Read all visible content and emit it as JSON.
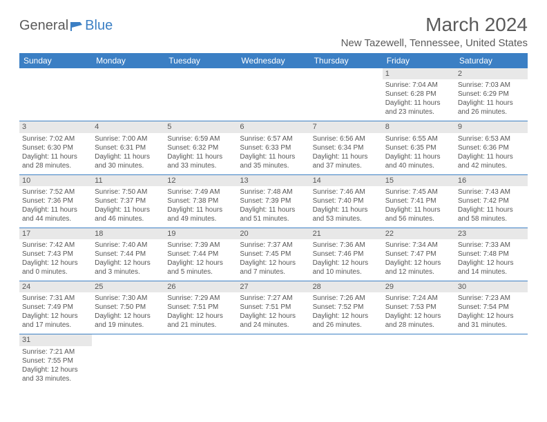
{
  "logo": {
    "text1": "General",
    "text2": "Blue"
  },
  "title": "March 2024",
  "location": "New Tazewell, Tennessee, United States",
  "colors": {
    "header_bg": "#3b7fc4",
    "text": "#5a5a5a",
    "daybar": "#e8e8e8"
  },
  "weekdays": [
    "Sunday",
    "Monday",
    "Tuesday",
    "Wednesday",
    "Thursday",
    "Friday",
    "Saturday"
  ],
  "weeks": [
    [
      null,
      null,
      null,
      null,
      null,
      {
        "n": "1",
        "sr": "Sunrise: 7:04 AM",
        "ss": "Sunset: 6:28 PM",
        "dl": "Daylight: 11 hours and 23 minutes."
      },
      {
        "n": "2",
        "sr": "Sunrise: 7:03 AM",
        "ss": "Sunset: 6:29 PM",
        "dl": "Daylight: 11 hours and 26 minutes."
      }
    ],
    [
      {
        "n": "3",
        "sr": "Sunrise: 7:02 AM",
        "ss": "Sunset: 6:30 PM",
        "dl": "Daylight: 11 hours and 28 minutes."
      },
      {
        "n": "4",
        "sr": "Sunrise: 7:00 AM",
        "ss": "Sunset: 6:31 PM",
        "dl": "Daylight: 11 hours and 30 minutes."
      },
      {
        "n": "5",
        "sr": "Sunrise: 6:59 AM",
        "ss": "Sunset: 6:32 PM",
        "dl": "Daylight: 11 hours and 33 minutes."
      },
      {
        "n": "6",
        "sr": "Sunrise: 6:57 AM",
        "ss": "Sunset: 6:33 PM",
        "dl": "Daylight: 11 hours and 35 minutes."
      },
      {
        "n": "7",
        "sr": "Sunrise: 6:56 AM",
        "ss": "Sunset: 6:34 PM",
        "dl": "Daylight: 11 hours and 37 minutes."
      },
      {
        "n": "8",
        "sr": "Sunrise: 6:55 AM",
        "ss": "Sunset: 6:35 PM",
        "dl": "Daylight: 11 hours and 40 minutes."
      },
      {
        "n": "9",
        "sr": "Sunrise: 6:53 AM",
        "ss": "Sunset: 6:36 PM",
        "dl": "Daylight: 11 hours and 42 minutes."
      }
    ],
    [
      {
        "n": "10",
        "sr": "Sunrise: 7:52 AM",
        "ss": "Sunset: 7:36 PM",
        "dl": "Daylight: 11 hours and 44 minutes."
      },
      {
        "n": "11",
        "sr": "Sunrise: 7:50 AM",
        "ss": "Sunset: 7:37 PM",
        "dl": "Daylight: 11 hours and 46 minutes."
      },
      {
        "n": "12",
        "sr": "Sunrise: 7:49 AM",
        "ss": "Sunset: 7:38 PM",
        "dl": "Daylight: 11 hours and 49 minutes."
      },
      {
        "n": "13",
        "sr": "Sunrise: 7:48 AM",
        "ss": "Sunset: 7:39 PM",
        "dl": "Daylight: 11 hours and 51 minutes."
      },
      {
        "n": "14",
        "sr": "Sunrise: 7:46 AM",
        "ss": "Sunset: 7:40 PM",
        "dl": "Daylight: 11 hours and 53 minutes."
      },
      {
        "n": "15",
        "sr": "Sunrise: 7:45 AM",
        "ss": "Sunset: 7:41 PM",
        "dl": "Daylight: 11 hours and 56 minutes."
      },
      {
        "n": "16",
        "sr": "Sunrise: 7:43 AM",
        "ss": "Sunset: 7:42 PM",
        "dl": "Daylight: 11 hours and 58 minutes."
      }
    ],
    [
      {
        "n": "17",
        "sr": "Sunrise: 7:42 AM",
        "ss": "Sunset: 7:43 PM",
        "dl": "Daylight: 12 hours and 0 minutes."
      },
      {
        "n": "18",
        "sr": "Sunrise: 7:40 AM",
        "ss": "Sunset: 7:44 PM",
        "dl": "Daylight: 12 hours and 3 minutes."
      },
      {
        "n": "19",
        "sr": "Sunrise: 7:39 AM",
        "ss": "Sunset: 7:44 PM",
        "dl": "Daylight: 12 hours and 5 minutes."
      },
      {
        "n": "20",
        "sr": "Sunrise: 7:37 AM",
        "ss": "Sunset: 7:45 PM",
        "dl": "Daylight: 12 hours and 7 minutes."
      },
      {
        "n": "21",
        "sr": "Sunrise: 7:36 AM",
        "ss": "Sunset: 7:46 PM",
        "dl": "Daylight: 12 hours and 10 minutes."
      },
      {
        "n": "22",
        "sr": "Sunrise: 7:34 AM",
        "ss": "Sunset: 7:47 PM",
        "dl": "Daylight: 12 hours and 12 minutes."
      },
      {
        "n": "23",
        "sr": "Sunrise: 7:33 AM",
        "ss": "Sunset: 7:48 PM",
        "dl": "Daylight: 12 hours and 14 minutes."
      }
    ],
    [
      {
        "n": "24",
        "sr": "Sunrise: 7:31 AM",
        "ss": "Sunset: 7:49 PM",
        "dl": "Daylight: 12 hours and 17 minutes."
      },
      {
        "n": "25",
        "sr": "Sunrise: 7:30 AM",
        "ss": "Sunset: 7:50 PM",
        "dl": "Daylight: 12 hours and 19 minutes."
      },
      {
        "n": "26",
        "sr": "Sunrise: 7:29 AM",
        "ss": "Sunset: 7:51 PM",
        "dl": "Daylight: 12 hours and 21 minutes."
      },
      {
        "n": "27",
        "sr": "Sunrise: 7:27 AM",
        "ss": "Sunset: 7:51 PM",
        "dl": "Daylight: 12 hours and 24 minutes."
      },
      {
        "n": "28",
        "sr": "Sunrise: 7:26 AM",
        "ss": "Sunset: 7:52 PM",
        "dl": "Daylight: 12 hours and 26 minutes."
      },
      {
        "n": "29",
        "sr": "Sunrise: 7:24 AM",
        "ss": "Sunset: 7:53 PM",
        "dl": "Daylight: 12 hours and 28 minutes."
      },
      {
        "n": "30",
        "sr": "Sunrise: 7:23 AM",
        "ss": "Sunset: 7:54 PM",
        "dl": "Daylight: 12 hours and 31 minutes."
      }
    ],
    [
      {
        "n": "31",
        "sr": "Sunrise: 7:21 AM",
        "ss": "Sunset: 7:55 PM",
        "dl": "Daylight: 12 hours and 33 minutes."
      },
      null,
      null,
      null,
      null,
      null,
      null
    ]
  ]
}
